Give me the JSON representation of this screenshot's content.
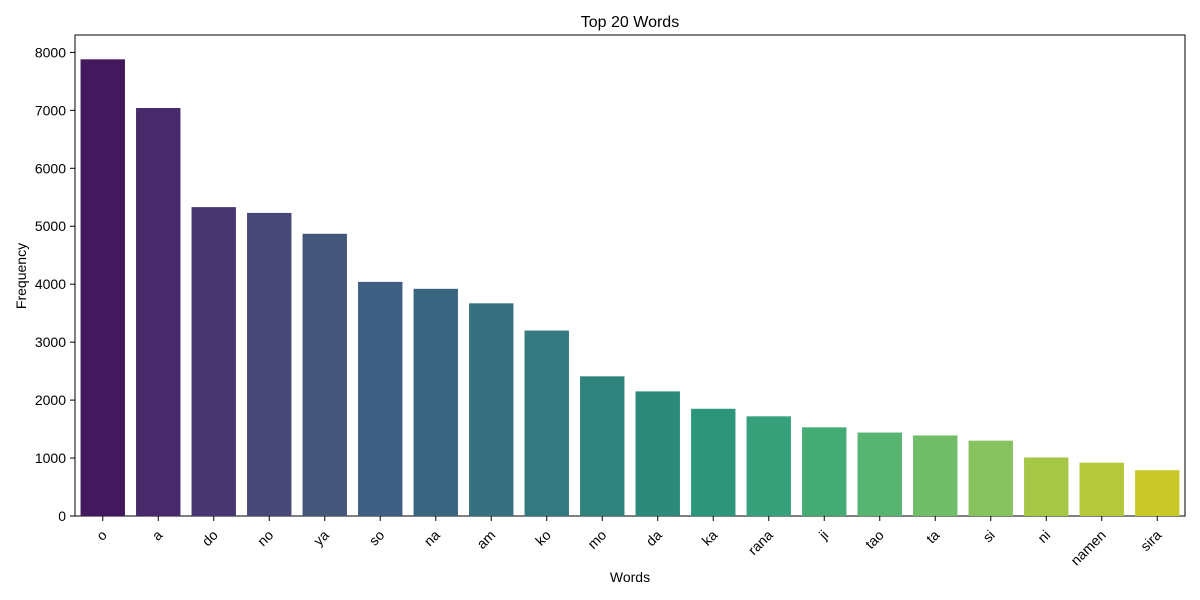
{
  "chart_data": {
    "type": "bar",
    "title": "Top 20 Words",
    "xlabel": "Words",
    "ylabel": "Frequency",
    "ylim": [
      0,
      8300
    ],
    "yticks": [
      0,
      1000,
      2000,
      3000,
      4000,
      5000,
      6000,
      7000,
      8000
    ],
    "grid": false,
    "legend": "none",
    "x_tick_rotation_deg": 45,
    "colormap": "viridis",
    "categories": [
      "o",
      "a",
      "do",
      "no",
      "ya",
      "so",
      "na",
      "am",
      "ko",
      "mo",
      "da",
      "ka",
      "rana",
      "ji",
      "tao",
      "ta",
      "si",
      "ni",
      "namen",
      "sira"
    ],
    "values": [
      7880,
      7040,
      5330,
      5230,
      4870,
      4040,
      3920,
      3670,
      3200,
      2410,
      2150,
      1850,
      1720,
      1530,
      1440,
      1390,
      1300,
      1010,
      920,
      790
    ],
    "colors": [
      "#43185c",
      "#482a6a",
      "#483871",
      "#474877",
      "#445679",
      "#3e5f81",
      "#3a6580",
      "#37717f",
      "#327a7f",
      "#30827d",
      "#2c8a7b",
      "#2d967a",
      "#36a17b",
      "#45ab75",
      "#57b471",
      "#72be68",
      "#86c35e",
      "#a5c745",
      "#b5c83c",
      "#c9c92c"
    ]
  }
}
